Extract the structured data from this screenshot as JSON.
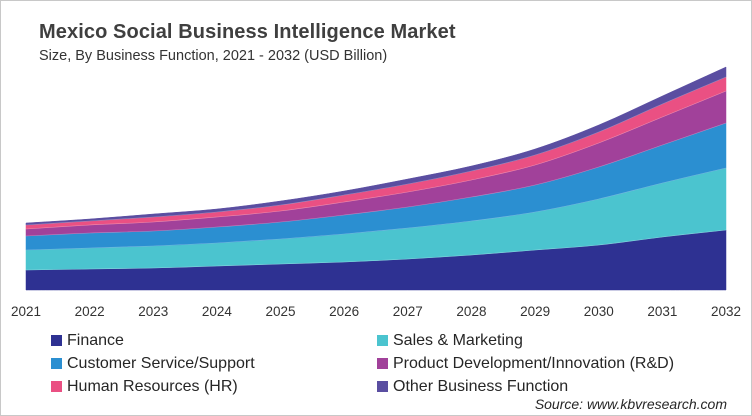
{
  "chart_data": {
    "type": "area",
    "stacked": true,
    "title": "Mexico Social Business Intelligence Market",
    "subtitle": "Size, By Business Function, 2021 - 2032 (USD Billion)",
    "xlabel": "",
    "ylabel": "",
    "y_axis_visible": false,
    "grid": false,
    "legend_position": "bottom",
    "categories": [
      "2021",
      "2022",
      "2023",
      "2024",
      "2025",
      "2026",
      "2027",
      "2028",
      "2029",
      "2030",
      "2031",
      "2032"
    ],
    "ylim": [
      0,
      2.23
    ],
    "series": [
      {
        "name": "Finance",
        "color": "#2e3192",
        "values": [
          0.2,
          0.21,
          0.22,
          0.24,
          0.26,
          0.28,
          0.31,
          0.35,
          0.4,
          0.45,
          0.53,
          0.6
        ]
      },
      {
        "name": "Sales & Marketing",
        "color": "#4bc4cf",
        "values": [
          0.2,
          0.21,
          0.22,
          0.23,
          0.25,
          0.28,
          0.31,
          0.34,
          0.38,
          0.46,
          0.54,
          0.62
        ]
      },
      {
        "name": "Customer Service/Support",
        "color": "#2b8fd1",
        "values": [
          0.14,
          0.15,
          0.15,
          0.16,
          0.17,
          0.19,
          0.21,
          0.24,
          0.27,
          0.32,
          0.38,
          0.45
        ]
      },
      {
        "name": "Product Development/Innovation (R&D)",
        "color": "#a1419a",
        "values": [
          0.07,
          0.08,
          0.09,
          0.1,
          0.11,
          0.13,
          0.15,
          0.17,
          0.2,
          0.24,
          0.28,
          0.32
        ]
      },
      {
        "name": "Human Resources (HR)",
        "color": "#ea5083",
        "values": [
          0.04,
          0.04,
          0.05,
          0.05,
          0.06,
          0.07,
          0.08,
          0.09,
          0.1,
          0.11,
          0.13,
          0.14
        ]
      },
      {
        "name": "Other Business Function",
        "color": "#5a4ea1",
        "values": [
          0.02,
          0.02,
          0.03,
          0.03,
          0.04,
          0.04,
          0.05,
          0.05,
          0.06,
          0.07,
          0.08,
          0.1
        ]
      }
    ],
    "legend_order": [
      0,
      1,
      2,
      3,
      4,
      5
    ],
    "source": "Source: www.kbvresearch.com"
  }
}
